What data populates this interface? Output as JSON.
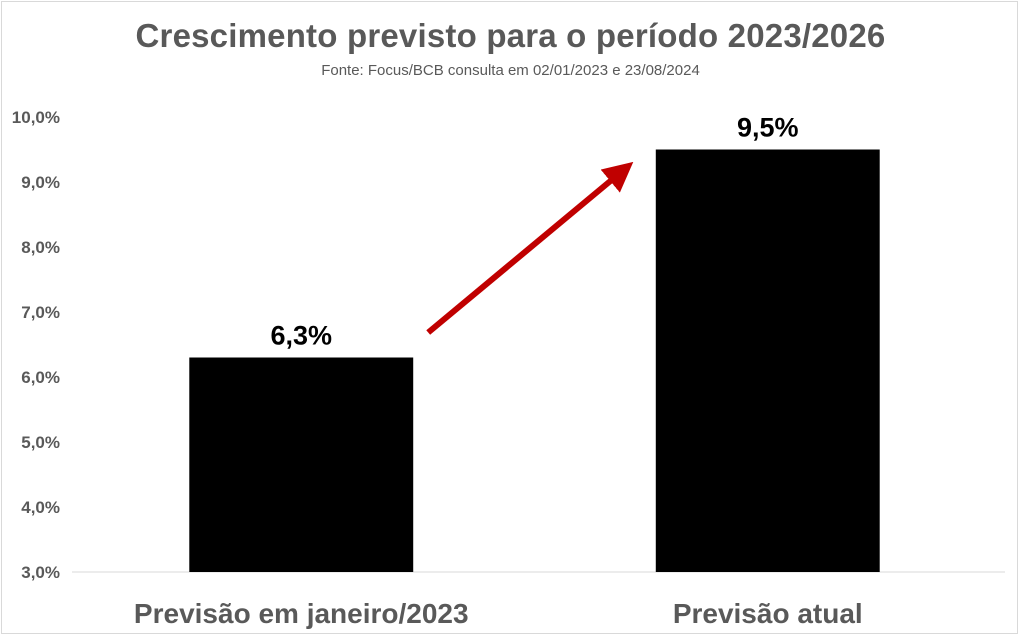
{
  "chart_data": {
    "type": "bar",
    "title": "Crescimento previsto para o período 2023/2026",
    "subtitle": "Fonte: Focus/BCB consulta em 02/01/2023 e 23/08/2024",
    "categories": [
      "Previsão em janeiro/2023",
      "Previsão atual"
    ],
    "values": [
      6.3,
      9.5
    ],
    "data_labels": [
      "6,3%",
      "9,5%"
    ],
    "ylim": [
      3.0,
      10.0
    ],
    "yticks": [
      3.0,
      4.0,
      5.0,
      6.0,
      7.0,
      8.0,
      9.0,
      10.0
    ],
    "ytick_labels": [
      "3,0%",
      "4,0%",
      "5,0%",
      "6,0%",
      "7,0%",
      "8,0%",
      "9,0%",
      "10,0%"
    ],
    "xlabel": "",
    "ylabel": "",
    "grid": false,
    "legend": "none",
    "bar_color": "#000000",
    "annotation": {
      "type": "arrow",
      "color": "#c00000",
      "from": "Previsão em janeiro/2023",
      "to": "Previsão atual"
    }
  }
}
